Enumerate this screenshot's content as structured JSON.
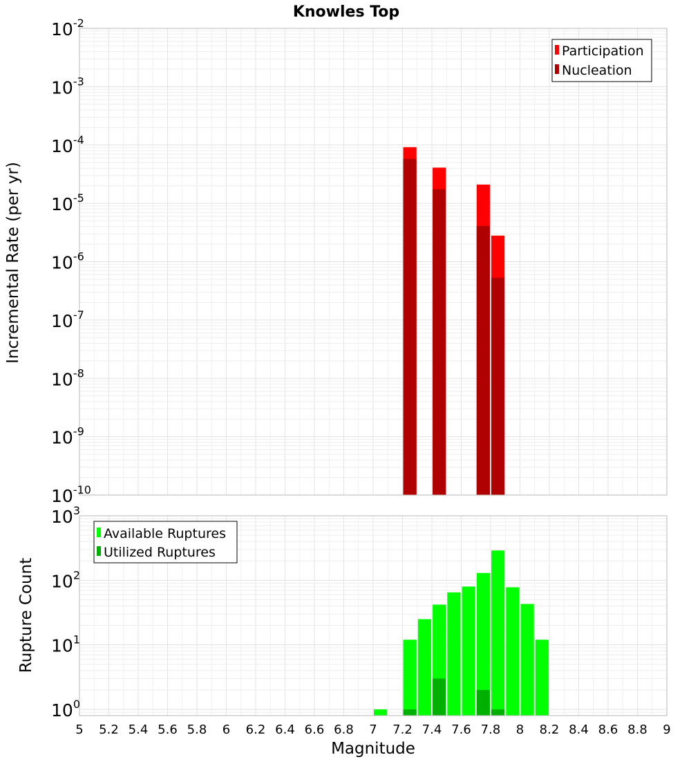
{
  "chart_data": [
    {
      "type": "bar",
      "panel": "top",
      "title": "Knowles Top",
      "ylabel": "Incremental Rate (per yr)",
      "yscale": "log",
      "ylim_exp": [
        -10,
        -2
      ],
      "ytick_base": "10",
      "ytick_exponents": [
        "-10",
        "-9",
        "-8",
        "-7",
        "-6",
        "-5",
        "-4",
        "-3",
        "-2"
      ],
      "xlim": [
        5,
        9
      ],
      "bar_width": 0.09,
      "legend_position": "top-right",
      "series": [
        {
          "name": "Participation",
          "color": "#ff0000",
          "points": [
            [
              7.25,
              9.2e-05
            ],
            [
              7.45,
              4.1e-05
            ],
            [
              7.75,
              2.1e-05
            ],
            [
              7.85,
              2.8e-06
            ]
          ]
        },
        {
          "name": "Nucleation",
          "color": "#b00000",
          "points": [
            [
              7.25,
              5.8e-05
            ],
            [
              7.45,
              1.75e-05
            ],
            [
              7.75,
              4.1e-06
            ],
            [
              7.85,
              5.3e-07
            ]
          ]
        }
      ]
    },
    {
      "type": "bar",
      "panel": "bottom",
      "ylabel": "Rupture Count",
      "xlabel": "Magnitude",
      "yscale": "log",
      "ylim": [
        0.8,
        1000
      ],
      "ytick_base": "10",
      "ytick_exponents": [
        "0",
        "1",
        "2",
        "3"
      ],
      "xlim": [
        5,
        9
      ],
      "xticks": [
        "5",
        "5.2",
        "5.4",
        "5.6",
        "5.8",
        "6",
        "6.2",
        "6.4",
        "6.6",
        "6.8",
        "7",
        "7.2",
        "7.4",
        "7.6",
        "7.8",
        "8",
        "8.2",
        "8.4",
        "8.6",
        "8.8",
        "9"
      ],
      "bar_width": 0.09,
      "legend_position": "top-left",
      "series": [
        {
          "name": "Available Ruptures",
          "color": "#00ff00",
          "points": [
            [
              7.05,
              1
            ],
            [
              7.25,
              12
            ],
            [
              7.35,
              25
            ],
            [
              7.45,
              42
            ],
            [
              7.55,
              65
            ],
            [
              7.65,
              80
            ],
            [
              7.75,
              130
            ],
            [
              7.85,
              290
            ],
            [
              7.95,
              78
            ],
            [
              8.05,
              43
            ],
            [
              8.15,
              12
            ]
          ]
        },
        {
          "name": "Utilized Ruptures",
          "color": "#00b000",
          "points": [
            [
              7.25,
              1
            ],
            [
              7.45,
              3
            ],
            [
              7.75,
              2
            ],
            [
              7.85,
              1
            ]
          ]
        }
      ]
    }
  ]
}
